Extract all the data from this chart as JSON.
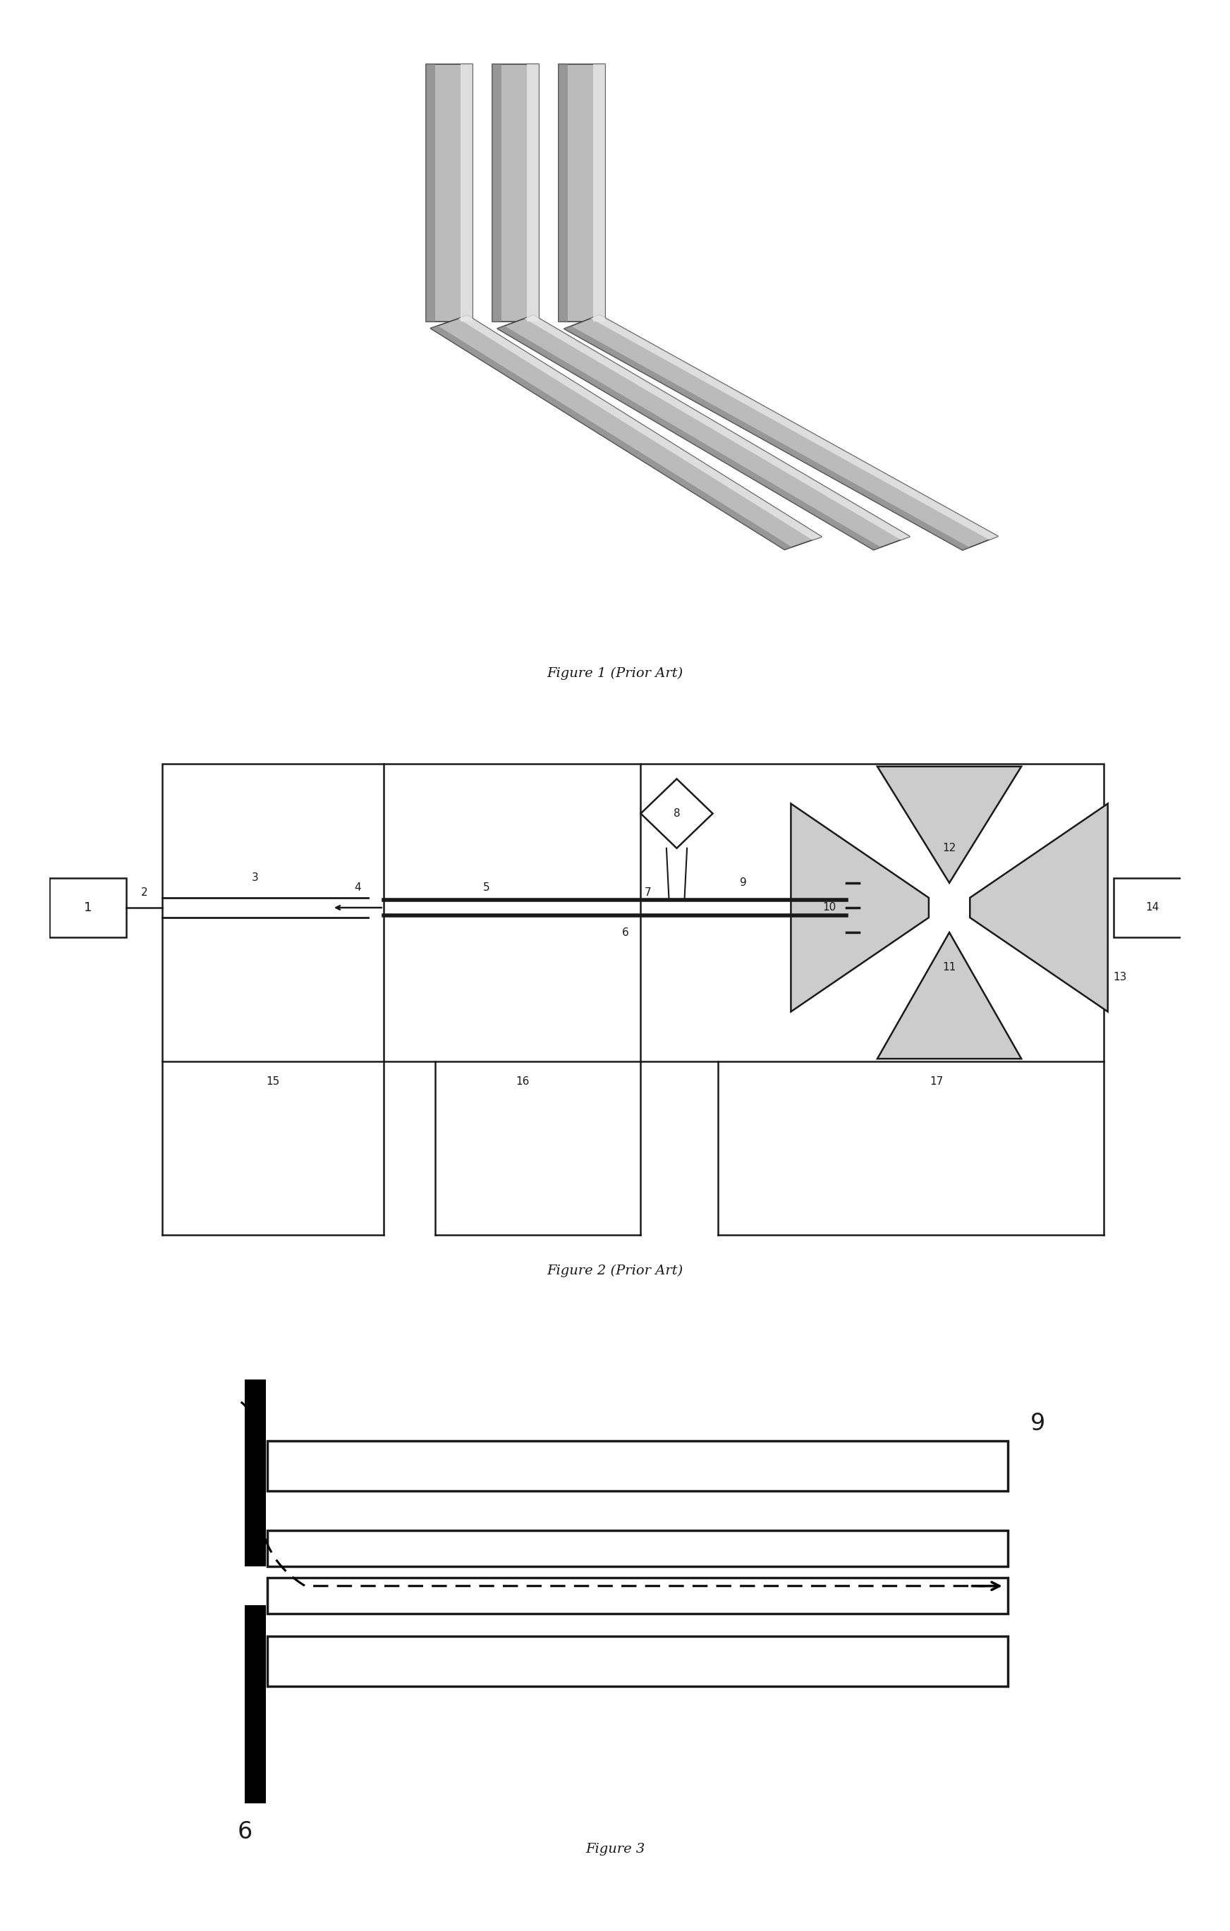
{
  "fig_width": 17.44,
  "fig_height": 27.38,
  "bg_color": "#ffffff",
  "fig1_caption": "Figure 1 (Prior Art)",
  "fig2_caption": "Figure 2 (Prior Art)",
  "fig3_caption": "Figure 3",
  "label_color": "#1a1a1a",
  "line_color": "#1a1a1a",
  "rod_gray": "#bbbbbb",
  "rod_highlight": "#e8e8e8",
  "rod_dark": "#888888",
  "rod_edge": "#444444"
}
